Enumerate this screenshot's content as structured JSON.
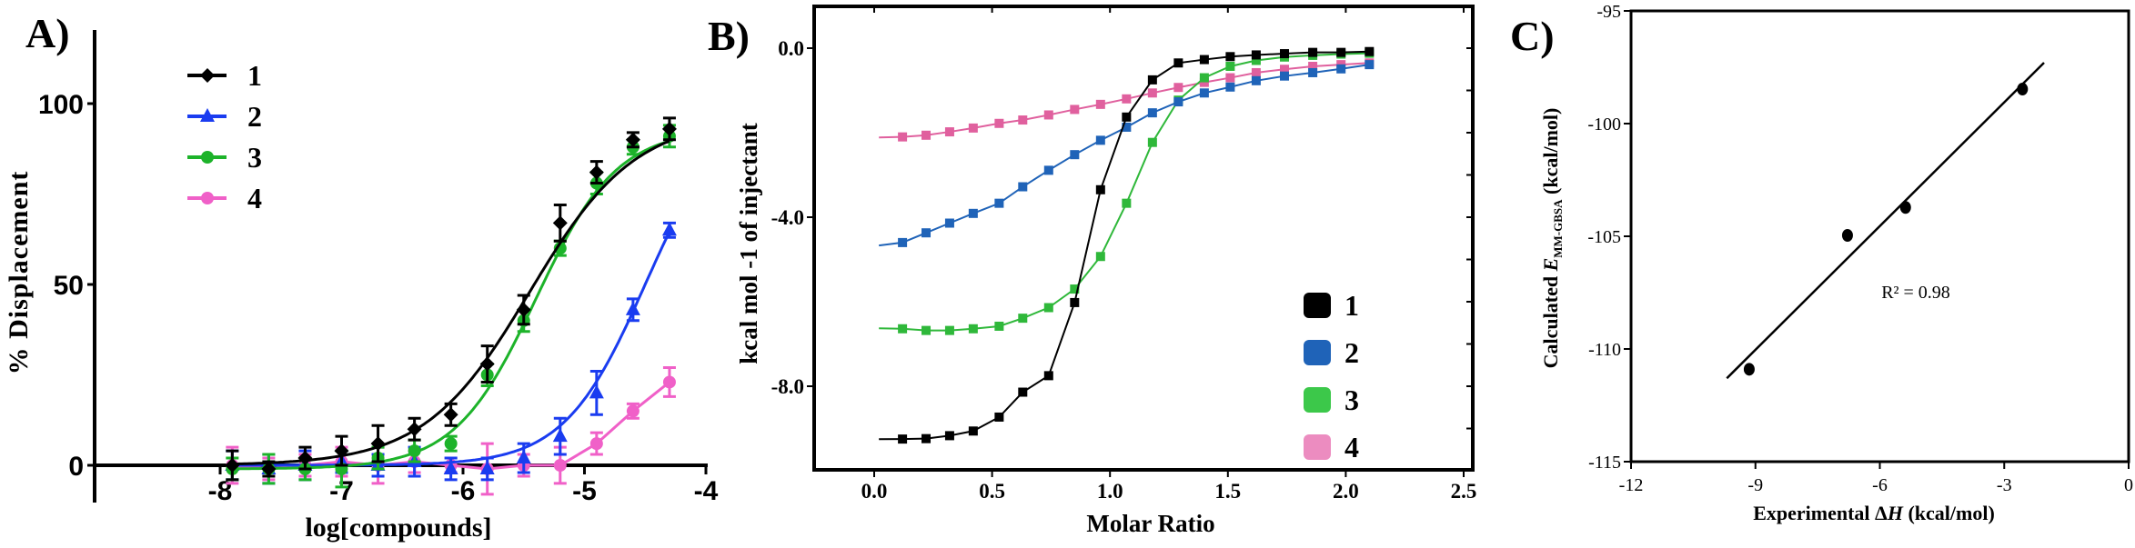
{
  "chart_data": [
    {
      "panel_label": "A)",
      "type": "line",
      "xlabel": "log[compounds]",
      "ylabel": "% Displacement",
      "xlim": [
        -9,
        -4
      ],
      "ylim": [
        -10,
        115
      ],
      "xticks": [
        "-8",
        "-7",
        "-6",
        "-5",
        "-4"
      ],
      "yticks": [
        "0",
        "50",
        "100"
      ],
      "legend_position": "top-left",
      "x": [
        -7.9,
        -7.6,
        -7.3,
        -7.0,
        -6.7,
        -6.4,
        -6.1,
        -5.8,
        -5.5,
        -5.2,
        -4.9,
        -4.6,
        -4.3
      ],
      "series": [
        {
          "name": "1",
          "color": "#000000",
          "marker": "diamond",
          "values": [
            0,
            -1,
            2,
            4,
            6,
            10,
            14,
            28,
            43,
            67,
            81,
            90,
            93
          ],
          "errors": [
            4,
            2,
            3,
            4,
            5,
            3,
            3,
            5,
            4,
            5,
            3,
            2,
            3
          ]
        },
        {
          "name": "2",
          "color": "#1a3cf0",
          "marker": "triangle",
          "values": [
            0,
            -1,
            0,
            1,
            0,
            1,
            -1,
            -1,
            2,
            8,
            20,
            43,
            65
          ],
          "errors": [
            4,
            4,
            4,
            3,
            3,
            4,
            3,
            3,
            4,
            5,
            6,
            3,
            2
          ]
        },
        {
          "name": "3",
          "color": "#1db32a",
          "marker": "circle",
          "values": [
            -1,
            -1,
            -1,
            -1,
            2,
            4,
            6,
            25,
            40,
            60,
            78,
            88,
            91
          ],
          "errors": [
            3,
            4,
            3,
            5,
            3,
            3,
            2,
            3,
            3,
            2,
            3,
            2,
            3
          ]
        },
        {
          "name": "4",
          "color": "#f060c8",
          "marker": "circle",
          "values": [
            0,
            -1,
            0,
            1,
            0,
            1,
            0,
            -1,
            0,
            0,
            6,
            15,
            23
          ],
          "errors": [
            5,
            3,
            3,
            4,
            5,
            3,
            2,
            7,
            3,
            5,
            3,
            2,
            4
          ]
        }
      ]
    },
    {
      "panel_label": "B)",
      "type": "line",
      "xlabel": "Molar Ratio",
      "ylabel": "kcal mol -1 of injectant",
      "xlim": [
        -0.25,
        2.55
      ],
      "ylim": [
        -10.0,
        1.0
      ],
      "xticks": [
        "0.0",
        "0.5",
        "1.0",
        "1.5",
        "2.0",
        "2.5"
      ],
      "yticks": [
        "0.0",
        "-4.0",
        "-8.0"
      ],
      "legend_position": "bottom-right",
      "x": [
        0.12,
        0.22,
        0.32,
        0.42,
        0.53,
        0.63,
        0.74,
        0.85,
        0.96,
        1.07,
        1.18,
        1.29,
        1.4,
        1.51,
        1.62,
        1.74,
        1.86,
        1.98,
        2.1
      ],
      "series": [
        {
          "name": "1",
          "color": "#000000",
          "legend_color": "#000000",
          "values": [
            -9.25,
            -9.24,
            -9.17,
            -9.06,
            -8.73,
            -8.14,
            -7.75,
            -6.02,
            -3.35,
            -1.63,
            -0.75,
            -0.35,
            -0.27,
            -0.2,
            -0.16,
            -0.13,
            -0.1,
            -0.1,
            -0.08
          ]
        },
        {
          "name": "2",
          "color": "#1f63b8",
          "legend_color": "#1f63b8",
          "values": [
            -4.6,
            -4.37,
            -4.14,
            -3.91,
            -3.67,
            -3.28,
            -2.89,
            -2.52,
            -2.18,
            -1.87,
            -1.53,
            -1.27,
            -1.06,
            -0.92,
            -0.77,
            -0.66,
            -0.58,
            -0.49,
            -0.39
          ]
        },
        {
          "name": "3",
          "color": "#2fb83a",
          "legend_color": "#3cc84a",
          "values": [
            -6.64,
            -6.68,
            -6.68,
            -6.64,
            -6.58,
            -6.39,
            -6.14,
            -5.7,
            -4.93,
            -3.67,
            -2.23,
            -1.23,
            -0.7,
            -0.43,
            -0.29,
            -0.21,
            -0.17,
            -0.14,
            -0.12
          ]
        },
        {
          "name": "4",
          "color": "#e0609e",
          "legend_color": "#ec8cc0",
          "values": [
            -2.1,
            -2.06,
            -1.98,
            -1.89,
            -1.78,
            -1.7,
            -1.58,
            -1.45,
            -1.33,
            -1.2,
            -1.06,
            -0.93,
            -0.81,
            -0.7,
            -0.58,
            -0.5,
            -0.43,
            -0.39,
            -0.35
          ]
        }
      ]
    },
    {
      "panel_label": "C)",
      "type": "scatter",
      "xlabel": "Experimental ΔH (kcal/mol)",
      "xlabel_parts": [
        "Experimental ",
        "Δ",
        "H",
        " (kcal/mol)"
      ],
      "ylabel_parts": [
        "Calculated ",
        "E",
        "MM-GBSA",
        " (kcal/mol)"
      ],
      "xlim": [
        -12,
        0
      ],
      "ylim": [
        -115,
        -95
      ],
      "xticks": [
        "-12",
        "-9",
        "-6",
        "-3",
        "0"
      ],
      "yticks": [
        "-95",
        "-100",
        "-105",
        "-110",
        "-115"
      ],
      "points": [
        {
          "x": -9.15,
          "y": -110.9
        },
        {
          "x": -6.78,
          "y": -104.96
        },
        {
          "x": -5.38,
          "y": -103.72
        },
        {
          "x": -2.56,
          "y": -98.47
        }
      ],
      "trendline": {
        "x": [
          -9.69,
          -2.04
        ],
        "y": [
          -111.3,
          -97.3
        ]
      },
      "annotation": "R² = 0.98",
      "color": "#000000"
    }
  ]
}
